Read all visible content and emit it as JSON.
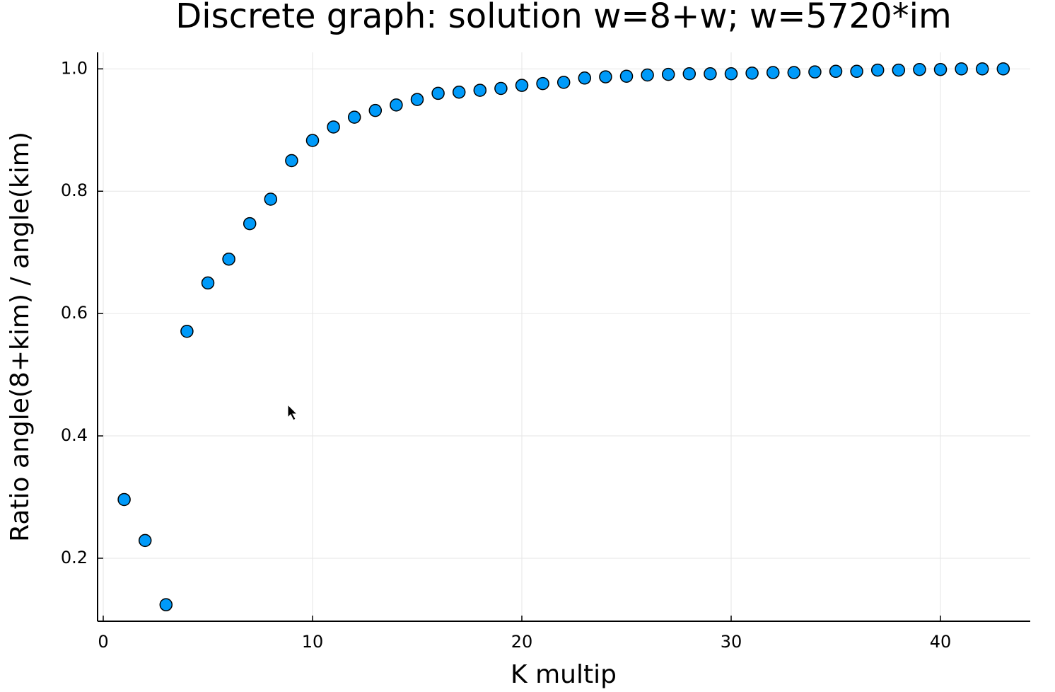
{
  "chart_data": {
    "type": "scatter",
    "title": "Discrete graph: solution w=8+w; w=5720*im",
    "x_label": "K multip",
    "y_label": "Ratio angle(8+kim) / angle(kim)",
    "color": "#009af9",
    "grid": true,
    "x": [
      1,
      2,
      3,
      4,
      5,
      6,
      7,
      8,
      9,
      10,
      11,
      12,
      13,
      14,
      15,
      16,
      17,
      18,
      19,
      20,
      21,
      22,
      23,
      24,
      25,
      26,
      27,
      28,
      29,
      30,
      31,
      32,
      33,
      34,
      35,
      36,
      37,
      38,
      39,
      40,
      41,
      42,
      43
    ],
    "y": [
      0.296,
      0.229,
      0.124,
      0.571,
      0.65,
      0.689,
      0.747,
      0.787,
      0.85,
      0.883,
      0.905,
      0.921,
      0.932,
      0.941,
      0.95,
      0.96,
      0.962,
      0.965,
      0.968,
      0.973,
      0.976,
      0.978,
      0.985,
      0.987,
      0.988,
      0.99,
      0.991,
      0.992,
      0.992,
      0.992,
      0.993,
      0.994,
      0.994,
      0.995,
      0.996,
      0.996,
      0.998,
      0.998,
      0.999,
      0.999,
      1.0,
      1.0,
      1.0
    ],
    "xlim": [
      -0.27,
      44.29
    ],
    "ylim": [
      0.097,
      1.027
    ],
    "xticks": [
      0,
      10,
      20,
      30,
      40
    ],
    "yticks": [
      0.2,
      0.4,
      0.6,
      0.8,
      {
        "value": 1,
        "label": "1.0"
      }
    ]
  }
}
